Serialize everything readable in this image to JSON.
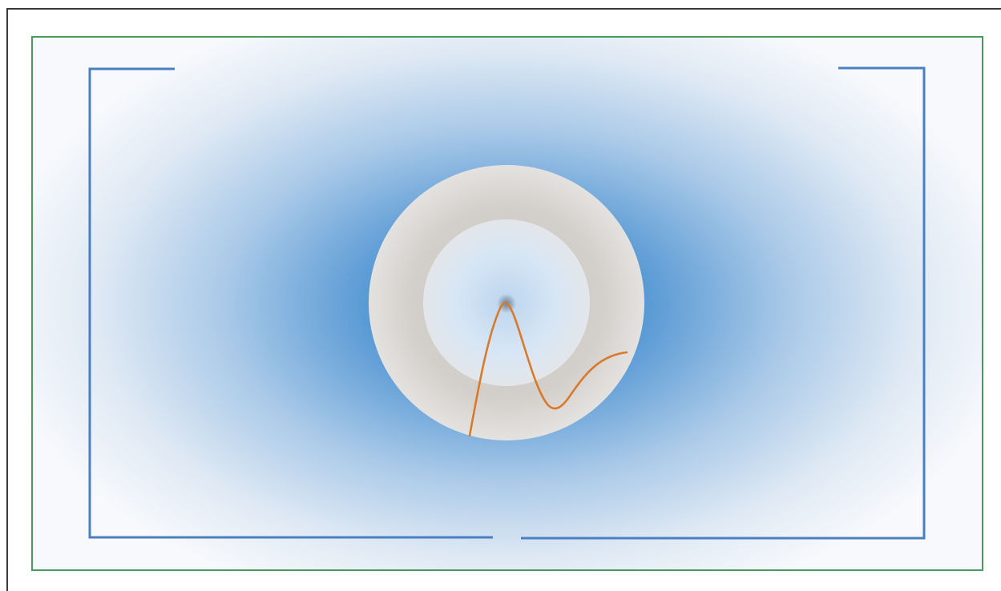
{
  "diagram": {
    "colors": {
      "outer_frame": "#3a3a3a",
      "border": "#4a9a5c",
      "bracket": "#4a7fc1",
      "field_center": "#5b9bd5",
      "field_edge": "#ffffff",
      "sphere_outer": "#d8d4d0",
      "sphere_inner": "#ddeaf7",
      "curve": "#d97a2b",
      "core": "#8a9bb0"
    }
  }
}
